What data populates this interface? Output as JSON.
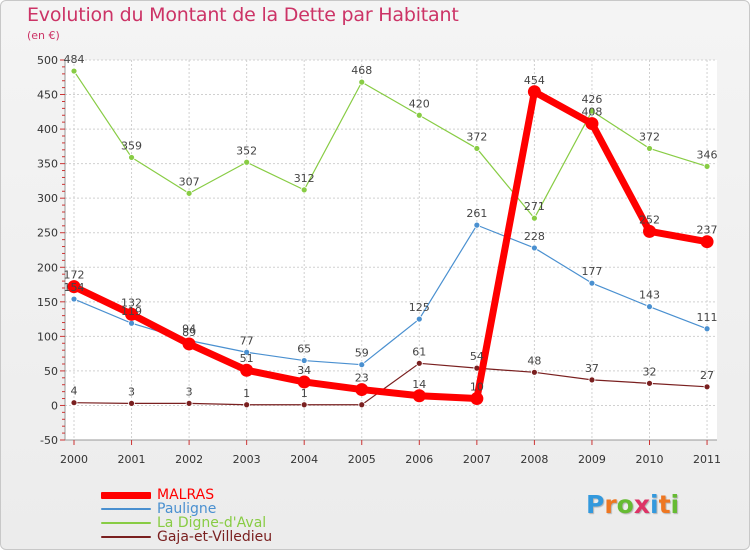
{
  "page": {
    "title": "Evolution du Montant de la Dette par Habitant",
    "subtitle": "(en €)"
  },
  "logo": {
    "letters": [
      "P",
      "r",
      "o",
      "x",
      "i",
      "t",
      "i"
    ],
    "colors": [
      "#3399dd",
      "#ee7722",
      "#66bb33",
      "#dd3366",
      "#3399dd",
      "#ee7722",
      "#66bb33"
    ]
  },
  "chart_data": {
    "type": "line",
    "title": "Evolution du Montant de la Dette par Habitant",
    "subtitle": "(en €)",
    "x": [
      "2000",
      "2001",
      "2002",
      "2003",
      "2004",
      "2005",
      "2006",
      "2007",
      "2008",
      "2009",
      "2010",
      "2011"
    ],
    "ylim": [
      -50,
      500
    ],
    "yticks": [
      -50,
      0,
      50,
      100,
      150,
      200,
      250,
      300,
      350,
      400,
      450,
      500
    ],
    "grid": true,
    "legend": "bottom-left",
    "series": [
      {
        "name": "MALRAS",
        "color": "#ff0000",
        "values": [
          172,
          132,
          89,
          51,
          34,
          23,
          14,
          10,
          454,
          408,
          252,
          237
        ],
        "labels": [
          "172",
          "132",
          "89",
          "51",
          "34",
          "23",
          "14",
          "10",
          "454",
          "408",
          "252",
          "237"
        ]
      },
      {
        "name": "Pauligne",
        "color": "#4a90d0",
        "values": [
          154,
          119,
          94,
          77,
          65,
          59,
          125,
          261,
          228,
          177,
          143,
          111
        ],
        "labels": [
          "154",
          "119",
          "94",
          "77",
          "65",
          "59",
          "125",
          "261",
          "228",
          "177",
          "143",
          "111"
        ]
      },
      {
        "name": "La Digne-d'Aval",
        "color": "#88cc44",
        "values": [
          484,
          359,
          307,
          352,
          312,
          468,
          420,
          372,
          271,
          426,
          372,
          346
        ],
        "labels": [
          "484",
          "359",
          "307",
          "352",
          "312",
          "468",
          "420",
          "372",
          "271",
          "426",
          "372",
          "346"
        ]
      },
      {
        "name": "Gaja-et-Villedieu",
        "color": "#7a2020",
        "values": [
          4,
          3,
          3,
          1,
          1,
          1,
          61,
          54,
          48,
          37,
          32,
          27
        ],
        "labels": [
          "4",
          "3",
          "3",
          "1",
          "1",
          "",
          "61",
          "54",
          "48",
          "37",
          "32",
          "27"
        ]
      }
    ]
  }
}
